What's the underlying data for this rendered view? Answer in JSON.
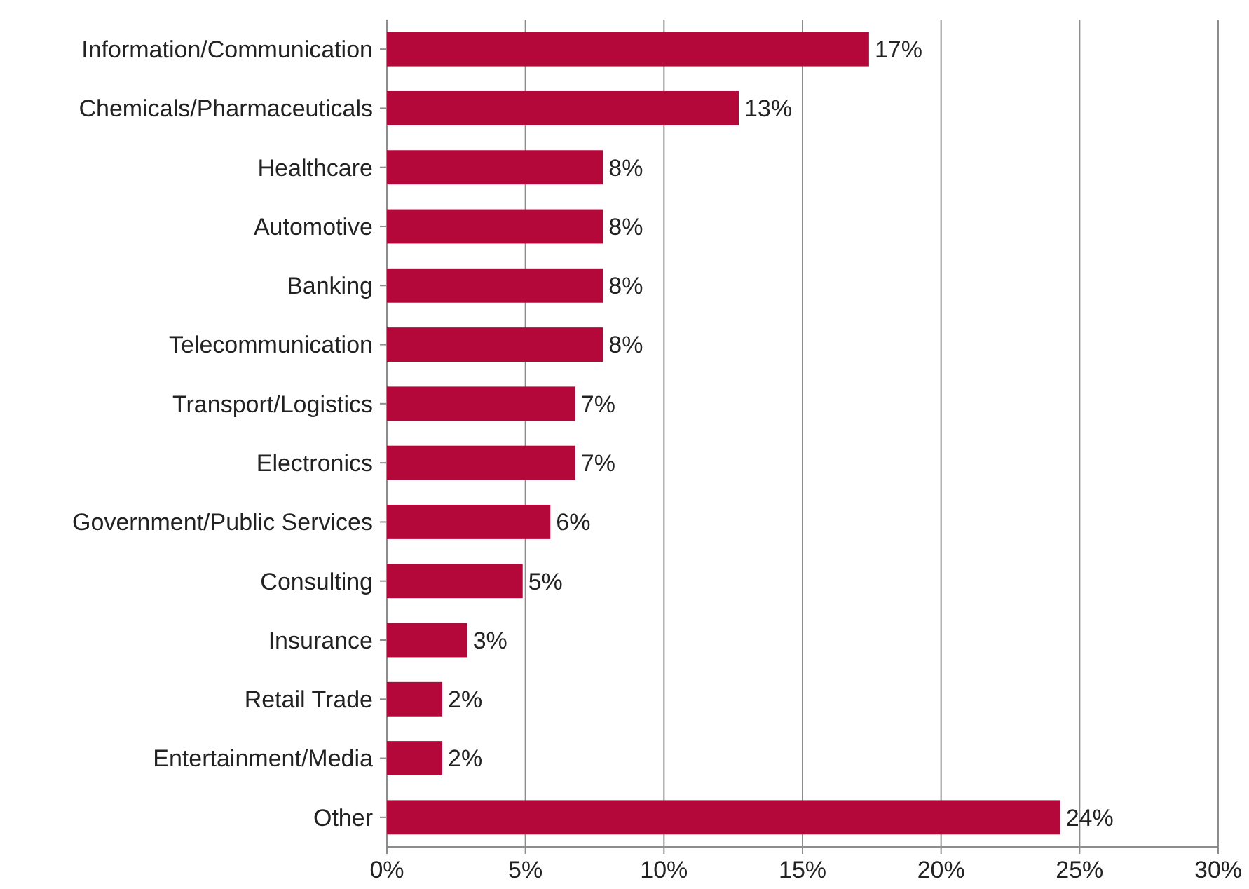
{
  "chart_data": {
    "type": "bar",
    "orientation": "horizontal",
    "categories": [
      "Information/Communication",
      "Chemicals/Pharmaceuticals",
      "Healthcare",
      "Automotive",
      "Banking",
      "Telecommunication",
      "Transport/Logistics",
      "Electronics",
      "Government/Public Services",
      "Consulting",
      "Insurance",
      "Retail Trade",
      "Entertainment/Media",
      "Other"
    ],
    "values": [
      17.4,
      12.7,
      7.8,
      7.8,
      7.8,
      7.8,
      6.8,
      6.8,
      5.9,
      4.9,
      2.9,
      2.0,
      2.0,
      24.3
    ],
    "value_labels": [
      "17%",
      "13%",
      "8%",
      "8%",
      "8%",
      "8%",
      "7%",
      "7%",
      "6%",
      "5%",
      "3%",
      "2%",
      "2%",
      "24%"
    ],
    "color": "#b5083a",
    "xlim": [
      0,
      30
    ],
    "xticks": [
      {
        "value": 0,
        "label": "0%"
      },
      {
        "value": 5,
        "label": "5%"
      },
      {
        "value": 10,
        "label": "10%"
      },
      {
        "value": 15,
        "label": "15%"
      },
      {
        "value": 20,
        "label": "20%"
      },
      {
        "value": 25,
        "label": "25%"
      },
      {
        "value": 30,
        "label": "30%"
      }
    ],
    "grid": "x"
  }
}
